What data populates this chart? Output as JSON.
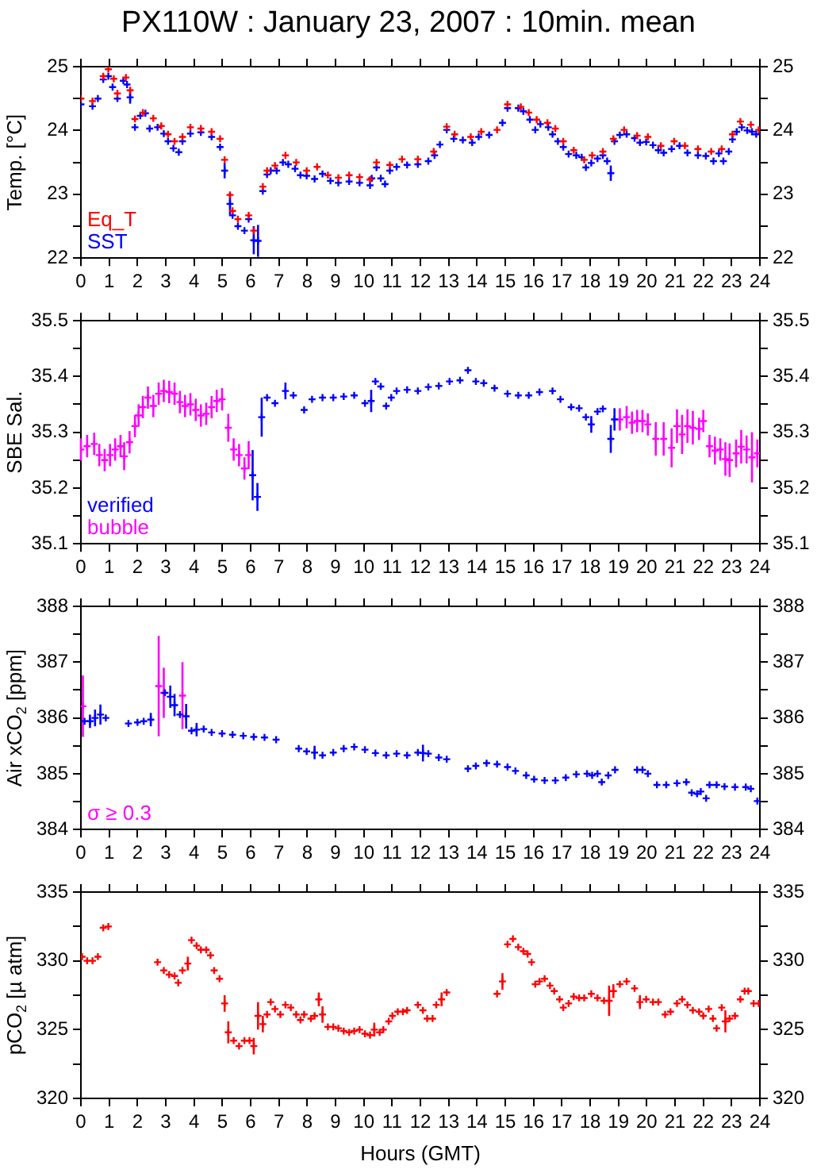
{
  "chart_data": [
    {
      "type": "scatter",
      "title": "PX110W : January 23, 2007 : 10min. mean",
      "ylabel": "Temp. [°C]",
      "xlim": [
        0,
        24
      ],
      "xticks": [
        0,
        1,
        2,
        3,
        4,
        5,
        6,
        7,
        8,
        9,
        10,
        11,
        12,
        13,
        14,
        15,
        16,
        17,
        18,
        19,
        20,
        21,
        22,
        23,
        24
      ],
      "ylim": [
        22,
        25
      ],
      "yticks": [
        22,
        {
          "value": 22.5,
          "label": null
        },
        23,
        {
          "value": 23.5,
          "label": null
        },
        24,
        {
          "value": 24.5,
          "label": null
        },
        25
      ],
      "y2lim": [
        22,
        25
      ],
      "y2ticks": [
        22,
        {
          "value": 22.5,
          "label": null
        },
        23,
        {
          "value": 23.5,
          "label": null
        },
        24,
        {
          "value": 24.5,
          "label": null
        },
        25
      ],
      "legend": "bottom left",
      "marker": "cross",
      "grid": false,
      "series": [
        {
          "name": "Eq_T",
          "color": "#ff0000",
          "x": [
            0,
            0.41,
            0.79,
            0.97,
            1.16,
            1.29,
            1.59,
            1.74,
            1.91,
            2.19,
            2.56,
            2.84,
            3.08,
            3.31,
            3.59,
            3.87,
            4.24,
            4.62,
            4.92,
            5.08,
            5.27,
            5.36,
            5.55,
            5.93,
            6.11,
            6.43,
            6.58,
            6.86,
            7.23,
            7.61,
            7.98,
            8.35,
            8.73,
            9.1,
            9.48,
            9.85,
            10.22,
            10.45,
            10.92,
            11.35,
            11.91,
            12.47,
            12.93,
            13.21,
            13.78,
            14.15,
            14.71,
            15.08,
            15.55,
            15.83,
            16.11,
            16.49,
            16.77,
            17.05,
            17.42,
            17.79,
            18.07,
            18.45,
            18.82,
            19.2,
            19.66,
            20.04,
            20.5,
            20.97,
            21.35,
            21.81,
            22.28,
            22.65,
            23.03,
            23.31,
            23.68,
            23.96
          ],
          "values": [
            24.5,
            24.46,
            24.85,
            24.96,
            24.81,
            24.58,
            24.83,
            24.63,
            24.18,
            24.28,
            24.19,
            24.07,
            23.94,
            23.83,
            23.9,
            24.05,
            24.03,
            23.98,
            23.87,
            23.54,
            22.99,
            22.74,
            22.61,
            22.67,
            22.43,
            23.12,
            23.37,
            23.45,
            23.61,
            23.5,
            23.37,
            23.43,
            23.3,
            23.26,
            23.3,
            23.27,
            23.23,
            23.5,
            23.46,
            23.55,
            23.55,
            23.67,
            24.06,
            23.94,
            23.9,
            23.98,
            24.01,
            24.41,
            24.37,
            24.28,
            24.17,
            24.12,
            24.03,
            23.83,
            23.69,
            23.54,
            23.61,
            23.67,
            23.87,
            24.01,
            23.92,
            23.9,
            23.76,
            23.83,
            23.76,
            23.71,
            23.67,
            23.71,
            23.94,
            24.14,
            24.09,
            24.01
          ]
        },
        {
          "name": "SST",
          "color": "#0000ff",
          "x": [
            0,
            0.41,
            0.6,
            0.79,
            0.97,
            1.12,
            1.29,
            1.5,
            1.63,
            1.74,
            1.91,
            2.1,
            2.28,
            2.43,
            2.71,
            2.93,
            3.08,
            3.27,
            3.46,
            3.59,
            3.87,
            4.24,
            4.62,
            4.92,
            5.08,
            5.27,
            5.36,
            5.55,
            5.78,
            5.93,
            6.11,
            6.26,
            6.43,
            6.58,
            6.71,
            6.92,
            7.14,
            7.33,
            7.57,
            7.76,
            7.98,
            8.26,
            8.54,
            8.82,
            9.1,
            9.48,
            9.85,
            10.22,
            10.28,
            10.45,
            10.6,
            10.75,
            10.92,
            11.16,
            11.53,
            11.91,
            12.28,
            12.5,
            12.69,
            12.93,
            13.18,
            13.5,
            13.83,
            14.06,
            14.43,
            14.9,
            15.08,
            15.46,
            15.64,
            15.87,
            16.06,
            16.24,
            16.52,
            16.67,
            16.86,
            17.05,
            17.24,
            17.51,
            17.7,
            17.85,
            18.04,
            18.26,
            18.45,
            18.6,
            18.73,
            18.86,
            19.05,
            19.29,
            19.57,
            19.76,
            19.98,
            20.22,
            20.41,
            20.6,
            20.88,
            21.16,
            21.44,
            21.81,
            22.09,
            22.36,
            22.55,
            22.71,
            22.9,
            23.03,
            23.18,
            23.36,
            23.55,
            23.72,
            23.87
          ],
          "values": [
            24.41,
            24.38,
            24.5,
            24.8,
            24.85,
            24.68,
            24.5,
            24.78,
            24.72,
            24.52,
            24.05,
            24.23,
            24.27,
            24.03,
            24.05,
            23.95,
            23.83,
            23.72,
            23.66,
            23.83,
            23.95,
            23.97,
            23.9,
            23.74,
            23.37,
            22.85,
            22.67,
            22.5,
            22.43,
            22.61,
            22.28,
            22.27,
            23.05,
            23.31,
            23.37,
            23.37,
            23.5,
            23.47,
            23.4,
            23.3,
            23.29,
            23.24,
            23.32,
            23.21,
            23.18,
            23.2,
            23.18,
            23.14,
            23.25,
            23.42,
            23.25,
            23.16,
            23.37,
            23.43,
            23.46,
            23.47,
            23.52,
            23.61,
            23.78,
            24.01,
            23.87,
            23.85,
            23.81,
            23.9,
            23.93,
            24.12,
            24.35,
            24.35,
            24.3,
            24.17,
            24.01,
            24.1,
            24.05,
            23.94,
            23.83,
            23.74,
            23.63,
            23.61,
            23.58,
            23.42,
            23.49,
            23.56,
            23.61,
            23.52,
            23.33,
            23.83,
            23.93,
            23.94,
            23.88,
            23.81,
            23.82,
            23.77,
            23.69,
            23.65,
            23.71,
            23.76,
            23.65,
            23.61,
            23.6,
            23.52,
            23.64,
            23.52,
            23.67,
            23.86,
            23.98,
            24.05,
            24.0,
            23.98,
            23.94
          ],
          "errors": [
            null,
            null,
            null,
            null,
            null,
            null,
            null,
            null,
            null,
            0.1,
            null,
            null,
            null,
            null,
            null,
            null,
            null,
            null,
            null,
            null,
            null,
            null,
            null,
            null,
            0.12,
            0.17,
            null,
            null,
            null,
            null,
            0.22,
            0.25,
            null,
            null,
            null,
            null,
            null,
            null,
            null,
            null,
            null,
            null,
            null,
            null,
            null,
            null,
            null,
            null,
            null,
            null,
            null,
            null,
            null,
            null,
            null,
            null,
            null,
            null,
            null,
            null,
            null,
            null,
            null,
            null,
            null,
            null,
            null,
            null,
            null,
            null,
            null,
            null,
            null,
            null,
            null,
            null,
            null,
            null,
            null,
            null,
            null,
            null,
            null,
            null,
            0.12,
            null,
            null,
            null,
            null,
            null,
            null,
            null,
            null,
            null,
            null,
            null,
            null,
            null,
            null,
            null,
            null,
            null,
            null,
            null,
            null,
            null,
            null,
            null,
            null
          ]
        }
      ]
    },
    {
      "type": "scatter",
      "ylabel": "SBE Sal.",
      "xlim": [
        0,
        24
      ],
      "xticks": [
        0,
        1,
        2,
        3,
        4,
        5,
        6,
        7,
        8,
        9,
        10,
        11,
        12,
        13,
        14,
        15,
        16,
        17,
        18,
        19,
        20,
        21,
        22,
        23,
        24
      ],
      "ylim": [
        35.1,
        35.5
      ],
      "yticks": [
        35.1,
        {
          "value": 35.15,
          "label": null
        },
        35.2,
        {
          "value": 35.25,
          "label": null
        },
        35.3,
        {
          "value": 35.35,
          "label": null
        },
        35.4,
        {
          "value": 35.45,
          "label": null
        },
        35.5
      ],
      "y2lim": [
        35.1,
        35.5
      ],
      "y2ticks": [
        35.1,
        {
          "value": 35.15,
          "label": null
        },
        35.2,
        {
          "value": 35.25,
          "label": null
        },
        35.3,
        {
          "value": 35.35,
          "label": null
        },
        35.4,
        {
          "value": 35.45,
          "label": null
        },
        35.5
      ],
      "legend": "bottom left",
      "marker": "cross",
      "grid": false,
      "series": [
        {
          "name": "verified",
          "color": "#0000ff",
          "x": [
            6.07,
            6.24,
            6.39,
            6.58,
            6.86,
            7.23,
            7.51,
            7.89,
            8.17,
            8.54,
            8.92,
            9.29,
            9.66,
            10.04,
            10.26,
            10.41,
            10.6,
            10.79,
            10.97,
            11.16,
            11.53,
            11.91,
            12.28,
            12.65,
            13.03,
            13.4,
            13.68,
            13.96,
            14.24,
            14.62,
            15.08,
            15.46,
            15.83,
            16.21,
            16.67,
            16.95,
            17.33,
            17.61,
            17.85,
            18.04,
            18.26,
            18.45,
            18.73,
            18.86
          ],
          "values": [
            35.223,
            35.184,
            35.327,
            35.362,
            35.352,
            35.374,
            35.366,
            35.34,
            35.359,
            35.362,
            35.362,
            35.364,
            35.366,
            35.352,
            35.356,
            35.391,
            35.382,
            35.347,
            35.362,
            35.374,
            35.376,
            35.374,
            35.381,
            35.383,
            35.391,
            35.393,
            35.411,
            35.391,
            35.388,
            35.379,
            35.369,
            35.366,
            35.366,
            35.372,
            35.374,
            35.359,
            35.345,
            35.343,
            35.327,
            35.314,
            35.337,
            35.342,
            35.288,
            35.323
          ],
          "errors": [
            0.045,
            0.025,
            0.035,
            null,
            null,
            0.015,
            null,
            null,
            null,
            null,
            null,
            null,
            null,
            null,
            0.02,
            null,
            null,
            null,
            null,
            null,
            null,
            null,
            null,
            null,
            null,
            null,
            null,
            null,
            null,
            null,
            null,
            null,
            null,
            null,
            null,
            null,
            null,
            null,
            null,
            0.015,
            null,
            null,
            0.025,
            0.02
          ]
        },
        {
          "name": "bubble",
          "color": "#ff00ff",
          "x": [
            0,
            0.22,
            0.47,
            0.65,
            0.84,
            1.03,
            1.21,
            1.4,
            1.53,
            1.72,
            1.91,
            2.04,
            2.19,
            2.37,
            2.56,
            2.75,
            2.93,
            3.12,
            3.31,
            3.5,
            3.68,
            3.87,
            4.06,
            4.24,
            4.43,
            4.62,
            4.8,
            4.99,
            5.21,
            5.4,
            5.59,
            5.78,
            5.93,
            19.05,
            19.29,
            19.48,
            19.66,
            19.85,
            20.04,
            20.32,
            20.6,
            20.88,
            21.07,
            21.25,
            21.44,
            21.63,
            21.85,
            22.0,
            22.22,
            22.41,
            22.6,
            22.78,
            22.93,
            23.16,
            23.34,
            23.53,
            23.72,
            23.91
          ],
          "values": [
            35.269,
            35.275,
            35.279,
            35.259,
            35.25,
            35.259,
            35.269,
            35.275,
            35.257,
            35.282,
            35.311,
            35.33,
            35.345,
            35.362,
            35.347,
            35.369,
            35.374,
            35.372,
            35.369,
            35.354,
            35.347,
            35.35,
            35.34,
            35.33,
            35.333,
            35.345,
            35.356,
            35.359,
            35.308,
            35.269,
            35.259,
            35.235,
            35.259,
            35.323,
            35.327,
            35.317,
            35.32,
            35.32,
            35.314,
            35.288,
            35.288,
            35.272,
            35.311,
            35.296,
            35.311,
            35.308,
            35.306,
            35.32,
            35.275,
            35.267,
            35.269,
            35.252,
            35.25,
            35.262,
            35.274,
            35.269,
            35.255,
            35.262
          ],
          "errors": [
            0.02,
            0.02,
            0.02,
            0.02,
            0.02,
            0.02,
            0.02,
            0.02,
            0.025,
            0.02,
            0.02,
            0.02,
            0.02,
            0.02,
            0.02,
            0.02,
            0.02,
            0.02,
            0.02,
            0.02,
            0.02,
            0.02,
            0.02,
            0.02,
            0.02,
            0.02,
            0.02,
            0.02,
            0.025,
            0.02,
            0.02,
            0.02,
            0.025,
            0.02,
            0.02,
            0.02,
            0.02,
            0.02,
            0.02,
            0.03,
            0.03,
            0.035,
            0.03,
            0.035,
            0.03,
            0.03,
            0.02,
            0.02,
            0.02,
            0.025,
            0.02,
            0.03,
            0.03,
            0.025,
            0.03,
            0.025,
            0.045,
            0.025
          ]
        }
      ]
    },
    {
      "type": "scatter",
      "ylabel": "Air xCO$_{2}$ [ppm]",
      "xlim": [
        0,
        24
      ],
      "xticks": [
        0,
        1,
        2,
        3,
        4,
        5,
        6,
        7,
        8,
        9,
        10,
        11,
        12,
        13,
        14,
        15,
        16,
        17,
        18,
        19,
        20,
        21,
        22,
        23,
        24
      ],
      "ylim": [
        384,
        388
      ],
      "yticks": [
        384,
        {
          "value": 384.5,
          "label": null
        },
        385,
        {
          "value": 385.5,
          "label": null
        },
        386,
        {
          "value": 386.5,
          "label": null
        },
        387,
        {
          "value": 387.5,
          "label": null
        },
        388
      ],
      "y2lim": [
        384,
        388
      ],
      "y2ticks": [
        384,
        {
          "value": 384.5,
          "label": null
        },
        385,
        {
          "value": 385.5,
          "label": null
        },
        386,
        {
          "value": 386.5,
          "label": null
        },
        387,
        {
          "value": 387.5,
          "label": null
        },
        388
      ],
      "legend": "bottom left",
      "marker": "cross",
      "grid": false,
      "series": [
        {
          "color": "#0000ff",
          "x": [
            0.13,
            0.32,
            0.5,
            0.69,
            0.88,
            1.68,
            2.0,
            2.22,
            2.47,
            2.97,
            3.16,
            3.31,
            3.5,
            3.72,
            3.91,
            4.09,
            4.34,
            4.62,
            4.99,
            5.36,
            5.74,
            6.11,
            6.49,
            6.9,
            7.7,
            7.98,
            8.26,
            8.54,
            8.92,
            9.29,
            9.66,
            10.04,
            10.41,
            10.79,
            11.16,
            11.53,
            11.91,
            12.09,
            12.28,
            12.65,
            12.93,
            13.68,
            13.96,
            14.34,
            14.71,
            15.08,
            15.36,
            15.74,
            16.02,
            16.39,
            16.77,
            17.14,
            17.51,
            17.89,
            18.07,
            18.26,
            18.41,
            18.64,
            18.88,
            19.66,
            19.85,
            20.04,
            20.36,
            20.69,
            21.07,
            21.4,
            21.59,
            21.78,
            21.91,
            22.1,
            22.22,
            22.47,
            22.75,
            23.12,
            23.5,
            23.68,
            23.91
          ],
          "values": [
            385.94,
            385.94,
            386.0,
            386.06,
            386.0,
            385.9,
            385.92,
            385.94,
            385.97,
            386.45,
            386.38,
            386.23,
            386.06,
            386.03,
            385.77,
            385.79,
            385.8,
            385.74,
            385.72,
            385.7,
            385.68,
            385.66,
            385.65,
            385.61,
            385.45,
            385.4,
            385.38,
            385.33,
            385.38,
            385.45,
            385.48,
            385.43,
            385.37,
            385.33,
            385.36,
            385.33,
            385.38,
            385.37,
            385.36,
            385.29,
            385.26,
            385.09,
            385.14,
            385.19,
            385.17,
            385.12,
            385.05,
            384.97,
            384.9,
            384.88,
            384.88,
            384.93,
            384.99,
            385.0,
            384.97,
            385.0,
            384.85,
            384.97,
            385.07,
            385.07,
            385.07,
            385.0,
            384.8,
            384.8,
            384.83,
            384.85,
            384.66,
            384.64,
            384.68,
            384.56,
            384.8,
            384.8,
            384.77,
            384.76,
            384.76,
            384.73,
            384.51
          ],
          "errors": [
            null,
            0.12,
            0.15,
            0.18,
            null,
            null,
            null,
            null,
            0.12,
            null,
            0.2,
            0.2,
            null,
            0.22,
            null,
            0.12,
            null,
            null,
            null,
            null,
            null,
            null,
            null,
            null,
            null,
            null,
            0.12,
            null,
            null,
            null,
            null,
            null,
            null,
            null,
            null,
            null,
            null,
            0.15,
            null,
            null,
            null,
            null,
            null,
            null,
            null,
            null,
            null,
            null,
            null,
            null,
            null,
            null,
            null,
            null,
            null,
            null,
            null,
            null,
            null,
            null,
            null,
            null,
            null,
            null,
            null,
            null,
            null,
            null,
            null,
            null,
            null,
            null,
            null,
            null,
            null,
            null,
            null
          ]
        },
        {
          "name": "σ ≥ 0.3",
          "color": "#ff00ff",
          "x": [
            0.07,
            2.75,
            2.93,
            3.59
          ],
          "values": [
            386.21,
            386.57,
            386.45,
            386.4
          ],
          "errors": [
            0.55,
            0.9,
            0.45,
            0.6
          ]
        }
      ]
    },
    {
      "type": "scatter",
      "ylabel": "pCO$_{2}$ [µ atm]",
      "xlabel": "Hours (GMT)",
      "xlim": [
        0,
        24
      ],
      "xticks": [
        0,
        1,
        2,
        3,
        4,
        5,
        6,
        7,
        8,
        9,
        10,
        11,
        12,
        13,
        14,
        15,
        16,
        17,
        18,
        19,
        20,
        21,
        22,
        23,
        24
      ],
      "ylim": [
        320,
        335
      ],
      "yticks": [
        320,
        {
          "value": 322.5,
          "label": null
        },
        325,
        {
          "value": 327.5,
          "label": null
        },
        330,
        {
          "value": 332.5,
          "label": null
        },
        335
      ],
      "y2lim": [
        320,
        335
      ],
      "y2ticks": [
        320,
        {
          "value": 322.5,
          "label": null
        },
        325,
        {
          "value": 327.5,
          "label": null
        },
        330,
        {
          "value": 332.5,
          "label": null
        },
        335
      ],
      "marker": "cross",
      "grid": false,
      "series": [
        {
          "color": "#ff0000",
          "x": [
            0.04,
            0.22,
            0.41,
            0.6,
            0.79,
            0.97,
            2.71,
            2.93,
            3.12,
            3.31,
            3.44,
            3.59,
            3.78,
            3.91,
            4.09,
            4.24,
            4.43,
            4.58,
            4.71,
            4.9,
            5.08,
            5.21,
            5.4,
            5.59,
            5.78,
            5.96,
            6.11,
            6.26,
            6.43,
            6.58,
            6.71,
            6.86,
            7.05,
            7.23,
            7.42,
            7.61,
            7.76,
            7.89,
            8.13,
            8.26,
            8.41,
            8.54,
            8.73,
            8.92,
            9.1,
            9.29,
            9.48,
            9.66,
            9.85,
            10.04,
            10.22,
            10.37,
            10.56,
            10.69,
            10.88,
            11.01,
            11.2,
            11.38,
            11.53,
            11.91,
            12.09,
            12.24,
            12.43,
            12.56,
            12.75,
            12.93,
            14.71,
            14.9,
            15.08,
            15.27,
            15.46,
            15.64,
            15.79,
            15.93,
            16.06,
            16.21,
            16.39,
            16.58,
            16.73,
            16.92,
            17.05,
            17.24,
            17.42,
            17.61,
            17.79,
            18.04,
            18.26,
            18.49,
            18.67,
            18.82,
            19.05,
            19.29,
            19.57,
            19.76,
            19.98,
            20.22,
            20.41,
            20.65,
            20.84,
            21.07,
            21.25,
            21.44,
            21.63,
            21.85,
            22.0,
            22.19,
            22.34,
            22.47,
            22.65,
            22.78,
            22.93,
            23.12,
            23.31,
            23.46,
            23.59,
            23.78,
            23.96
          ],
          "values": [
            330.3,
            330.0,
            330.0,
            330.3,
            332.4,
            332.5,
            329.9,
            329.3,
            329.0,
            328.9,
            328.4,
            329.3,
            329.8,
            331.5,
            331.1,
            330.8,
            330.8,
            330.4,
            329.3,
            328.7,
            326.9,
            324.8,
            324.2,
            323.8,
            324.2,
            324.2,
            323.8,
            326.0,
            325.4,
            326.1,
            327.0,
            326.5,
            326.1,
            326.8,
            326.6,
            326.1,
            325.7,
            326.1,
            325.8,
            326.0,
            327.2,
            326.1,
            325.2,
            325.2,
            325.1,
            324.9,
            324.8,
            324.9,
            325.0,
            324.7,
            324.6,
            325.0,
            324.8,
            325.0,
            325.6,
            326.0,
            326.3,
            326.3,
            326.4,
            326.8,
            326.4,
            325.8,
            325.8,
            326.8,
            327.2,
            327.7,
            327.6,
            328.5,
            331.2,
            331.6,
            331.0,
            330.7,
            330.5,
            329.9,
            328.3,
            328.5,
            328.7,
            328.2,
            327.8,
            327.2,
            326.6,
            326.9,
            327.4,
            327.3,
            327.3,
            327.6,
            327.3,
            327.1,
            327.1,
            327.8,
            328.3,
            328.5,
            328.0,
            327.0,
            327.2,
            327.0,
            327.0,
            326.1,
            326.3,
            326.9,
            327.2,
            326.8,
            326.4,
            326.3,
            326.0,
            326.5,
            325.8,
            325.1,
            326.6,
            325.6,
            325.8,
            326.0,
            327.2,
            327.8,
            327.8,
            326.9,
            326.9
          ],
          "errors": [
            null,
            null,
            null,
            null,
            null,
            null,
            null,
            null,
            null,
            null,
            null,
            null,
            0.5,
            null,
            null,
            null,
            null,
            null,
            null,
            null,
            0.6,
            0.8,
            null,
            null,
            null,
            null,
            0.6,
            1.0,
            0.6,
            null,
            null,
            null,
            null,
            null,
            null,
            null,
            null,
            null,
            null,
            null,
            0.5,
            0.6,
            null,
            null,
            null,
            null,
            null,
            null,
            null,
            null,
            null,
            0.5,
            null,
            null,
            null,
            null,
            null,
            null,
            null,
            null,
            null,
            null,
            null,
            null,
            0.5,
            null,
            null,
            0.6,
            null,
            null,
            null,
            null,
            null,
            null,
            null,
            null,
            null,
            null,
            null,
            null,
            null,
            null,
            null,
            null,
            null,
            null,
            null,
            null,
            1.1,
            0.5,
            null,
            null,
            null,
            0.5,
            null,
            null,
            null,
            null,
            null,
            null,
            null,
            null,
            null,
            null,
            null,
            null,
            null,
            null,
            null,
            0.8,
            null,
            null,
            null,
            null,
            null,
            null,
            null
          ]
        }
      ]
    }
  ]
}
